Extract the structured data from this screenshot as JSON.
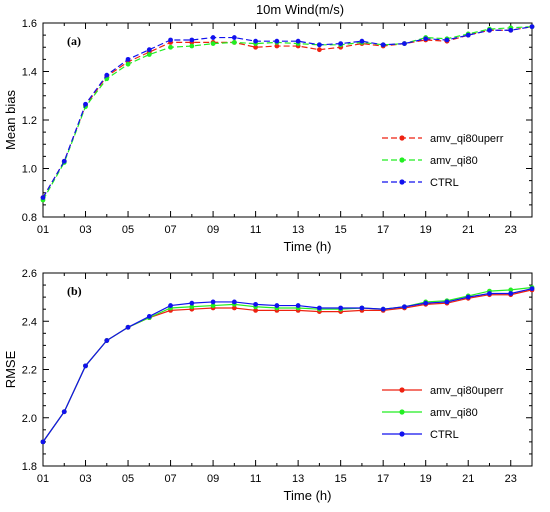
{
  "figure_title": "10m Wind(m/s)",
  "chart_data": [
    {
      "type": "line",
      "panel_label": "(a)",
      "xlabel": "Time (h)",
      "ylabel": "Mean bias",
      "xlim": [
        1,
        24
      ],
      "ylim": [
        0.8,
        1.6
      ],
      "x": [
        1,
        2,
        3,
        4,
        5,
        6,
        7,
        8,
        9,
        10,
        11,
        12,
        13,
        14,
        15,
        16,
        17,
        18,
        19,
        20,
        21,
        22,
        23,
        24
      ],
      "xticks": [
        1,
        3,
        5,
        7,
        9,
        11,
        13,
        15,
        17,
        19,
        21,
        23
      ],
      "xtick_labels": [
        "01",
        "03",
        "05",
        "07",
        "09",
        "11",
        "13",
        "15",
        "17",
        "19",
        "21",
        "23"
      ],
      "yticks": [
        0.8,
        1.0,
        1.2,
        1.4,
        1.6
      ],
      "ytick_labels": [
        "0.8",
        "1.0",
        "1.2",
        "1.4",
        "1.6"
      ],
      "grid": false,
      "legend_position": "right",
      "series": [
        {
          "name": "amv_qi80uperr",
          "color": "#ee2211",
          "line_style": "dashed",
          "values": [
            0.88,
            1.03,
            1.26,
            1.38,
            1.44,
            1.48,
            1.52,
            1.52,
            1.52,
            1.52,
            1.5,
            1.505,
            1.505,
            1.49,
            1.5,
            1.515,
            1.505,
            1.515,
            1.53,
            1.525,
            1.55,
            1.57,
            1.57,
            1.585
          ]
        },
        {
          "name": "amv_qi80",
          "color": "#22ee22",
          "line_style": "dashed",
          "values": [
            0.87,
            1.025,
            1.255,
            1.37,
            1.43,
            1.47,
            1.5,
            1.505,
            1.515,
            1.52,
            1.515,
            1.52,
            1.515,
            1.51,
            1.51,
            1.52,
            1.51,
            1.515,
            1.54,
            1.535,
            1.555,
            1.575,
            1.58,
            1.585
          ]
        },
        {
          "name": "CTRL",
          "color": "#1111ee",
          "line_style": "dashed",
          "values": [
            0.88,
            1.03,
            1.265,
            1.385,
            1.45,
            1.49,
            1.53,
            1.53,
            1.54,
            1.54,
            1.525,
            1.525,
            1.525,
            1.51,
            1.515,
            1.525,
            1.51,
            1.515,
            1.535,
            1.53,
            1.55,
            1.57,
            1.57,
            1.585
          ]
        }
      ]
    },
    {
      "type": "line",
      "panel_label": "(b)",
      "xlabel": "Time (h)",
      "ylabel": "RMSE",
      "xlim": [
        1,
        24
      ],
      "ylim": [
        1.8,
        2.6
      ],
      "x": [
        1,
        2,
        3,
        4,
        5,
        6,
        7,
        8,
        9,
        10,
        11,
        12,
        13,
        14,
        15,
        16,
        17,
        18,
        19,
        20,
        21,
        22,
        23,
        24
      ],
      "xticks": [
        1,
        3,
        5,
        7,
        9,
        11,
        13,
        15,
        17,
        19,
        21,
        23
      ],
      "xtick_labels": [
        "01",
        "03",
        "05",
        "07",
        "09",
        "11",
        "13",
        "15",
        "17",
        "19",
        "21",
        "23"
      ],
      "yticks": [
        1.8,
        2.0,
        2.2,
        2.4,
        2.6
      ],
      "ytick_labels": [
        "1.8",
        "2.0",
        "2.2",
        "2.4",
        "2.6"
      ],
      "grid": false,
      "legend_position": "right",
      "series": [
        {
          "name": "amv_qi80uperr",
          "color": "#ee2211",
          "line_style": "solid",
          "values": [
            1.9,
            2.025,
            2.215,
            2.32,
            2.375,
            2.415,
            2.445,
            2.45,
            2.455,
            2.455,
            2.445,
            2.445,
            2.445,
            2.44,
            2.44,
            2.445,
            2.445,
            2.455,
            2.47,
            2.475,
            2.495,
            2.51,
            2.51,
            2.53
          ]
        },
        {
          "name": "amv_qi80",
          "color": "#22ee22",
          "line_style": "solid",
          "values": [
            1.9,
            2.025,
            2.215,
            2.32,
            2.375,
            2.415,
            2.455,
            2.46,
            2.465,
            2.47,
            2.46,
            2.455,
            2.455,
            2.45,
            2.45,
            2.455,
            2.45,
            2.46,
            2.48,
            2.485,
            2.505,
            2.525,
            2.53,
            2.54
          ]
        },
        {
          "name": "CTRL",
          "color": "#1111ee",
          "line_style": "solid",
          "values": [
            1.9,
            2.025,
            2.215,
            2.32,
            2.375,
            2.42,
            2.465,
            2.475,
            2.48,
            2.48,
            2.47,
            2.465,
            2.465,
            2.455,
            2.455,
            2.455,
            2.45,
            2.46,
            2.475,
            2.48,
            2.5,
            2.515,
            2.515,
            2.535
          ]
        }
      ]
    }
  ]
}
